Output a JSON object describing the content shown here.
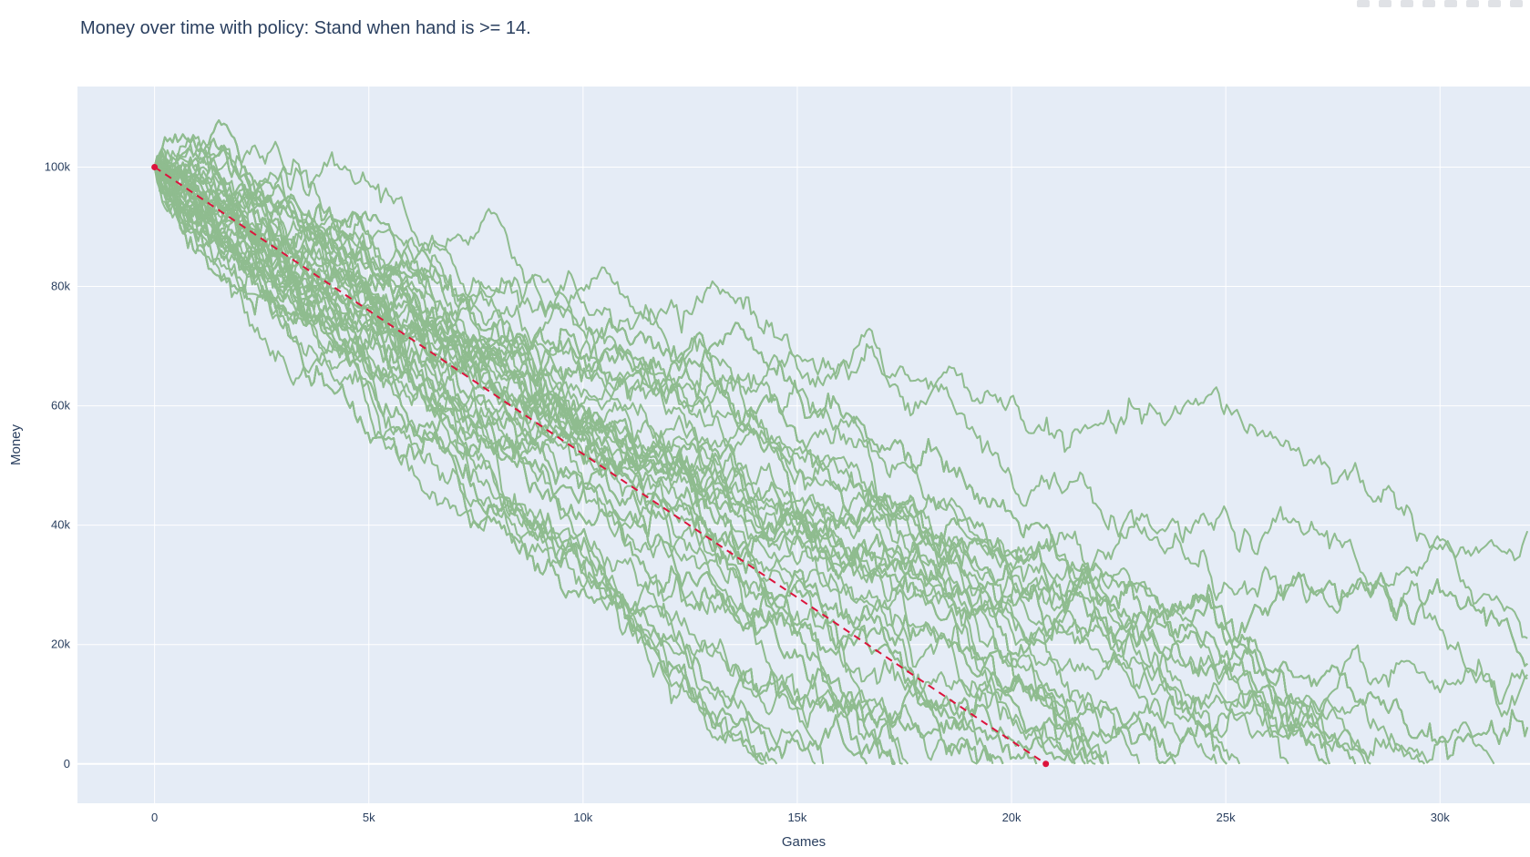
{
  "toolbar": {
    "icons": [
      "camera-icon",
      "zoom-icon",
      "pan-icon",
      "box-select-icon",
      "lasso-icon",
      "zoom-in-icon",
      "zoom-out-icon",
      "autoscale-icon"
    ]
  },
  "chart_data": {
    "type": "line",
    "title": "Money over time with policy: Stand when hand is >= 14.",
    "xlabel": "Games",
    "ylabel": "Money",
    "xlim": [
      -1800,
      32100
    ],
    "ylim": [
      -6600,
      113500
    ],
    "xticks": [
      0,
      5000,
      10000,
      15000,
      20000,
      25000,
      30000
    ],
    "xtick_labels": [
      "0",
      "5k",
      "10k",
      "15k",
      "20k",
      "25k",
      "30k"
    ],
    "yticks": [
      0,
      20000,
      40000,
      60000,
      80000,
      100000
    ],
    "ytick_labels": [
      "0",
      "20k",
      "40k",
      "60k",
      "80k",
      "100k"
    ],
    "grid": true,
    "legend": "none",
    "colors": {
      "plot_bg": "#e5ecf6",
      "grid": "#ffffff",
      "simulation": "#8fbc8f",
      "average": "#dc143c"
    },
    "simulations": {
      "count": 100,
      "start_money": 100000,
      "end_games_observed": [
        14400,
        15500,
        17000,
        18500,
        19000,
        19500,
        20000,
        20200,
        20500,
        20800,
        21000,
        21200,
        21500,
        21800,
        22000,
        22300,
        22600,
        23000,
        23400,
        24000,
        24500,
        25000,
        26000,
        27300,
        28900,
        32000
      ]
    },
    "series": [
      {
        "name": "",
        "style": "dashed",
        "markers": true,
        "x": [
          0,
          20800
        ],
        "y": [
          100000,
          0
        ]
      }
    ]
  }
}
